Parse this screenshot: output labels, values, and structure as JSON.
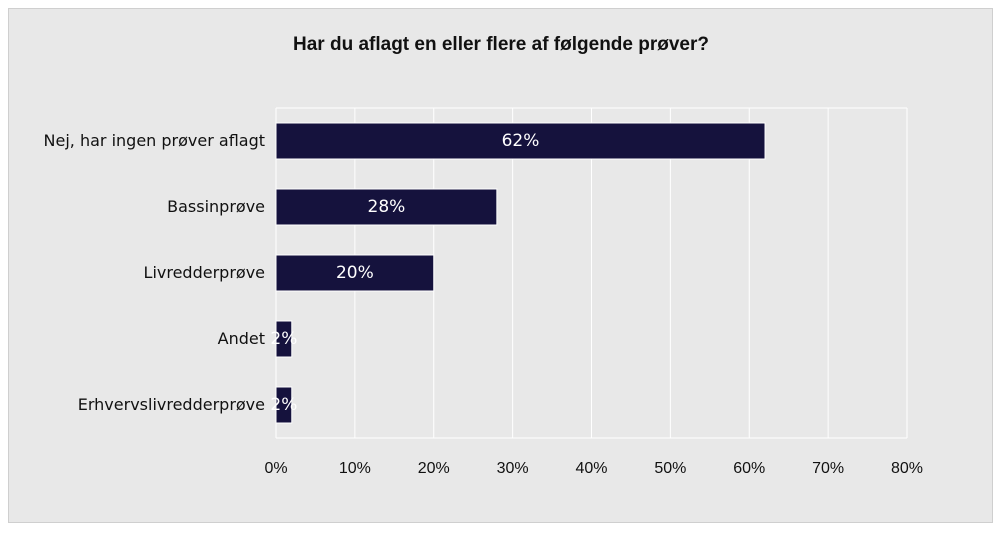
{
  "chart_data": {
    "type": "bar",
    "orientation": "horizontal",
    "title": "Har du aflagt en eller flere af følgende prøver?",
    "categories": [
      "Nej, har ingen prøver aflagt",
      "Bassinprøve",
      "Livredderprøve",
      "Andet",
      "Erhvervslivredderprøve"
    ],
    "values": [
      62,
      28,
      20,
      2,
      2
    ],
    "value_labels": [
      "62%",
      "28%",
      "20%",
      "2%",
      "2%"
    ],
    "color": "#15123d",
    "xlim": [
      0,
      80
    ],
    "xticks": [
      {
        "value": 0,
        "label": "0%"
      },
      {
        "value": 10,
        "label": "10%"
      },
      {
        "value": 20,
        "label": "20%"
      },
      {
        "value": 30,
        "label": "30%"
      },
      {
        "value": 40,
        "label": "40%"
      },
      {
        "value": 50,
        "label": "50%"
      },
      {
        "value": 60,
        "label": "60%"
      },
      {
        "value": 70,
        "label": "70%"
      },
      {
        "value": 80,
        "label": "80%"
      }
    ],
    "grid": true
  }
}
